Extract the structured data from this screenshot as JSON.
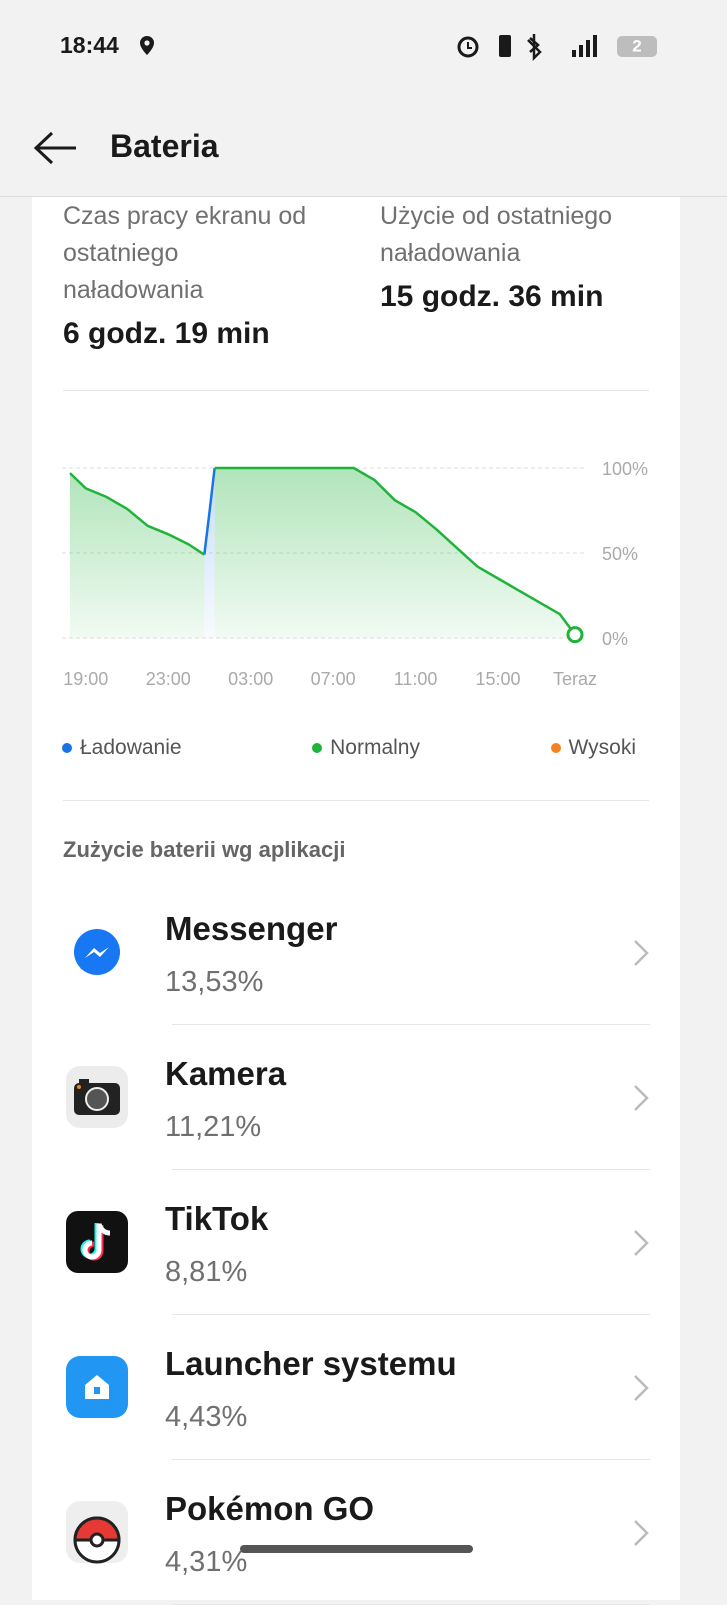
{
  "status_bar": {
    "time": "18:44",
    "battery_level": "2"
  },
  "header": {
    "title": "Bateria"
  },
  "summary": [
    {
      "label": "Czas pracy ekranu od ostatniego naładowania",
      "value": "6 godz. 19 min"
    },
    {
      "label": "Użycie od ostatniego naładowania",
      "value": "15 godz. 36 min"
    }
  ],
  "chart_data": {
    "type": "line",
    "x": [
      "18:14",
      "19:00",
      "20:00",
      "21:00",
      "22:00",
      "23:00",
      "00:00",
      "00:45",
      "01:00",
      "01:15",
      "03:00",
      "07:00",
      "08:00",
      "09:00",
      "10:00",
      "11:00",
      "12:00",
      "13:00",
      "14:00",
      "15:00",
      "16:00",
      "17:00",
      "18:00",
      "18:44"
    ],
    "series": [
      {
        "name": "Ładowanie",
        "color": "#1a73e8",
        "values": [
          null,
          null,
          null,
          null,
          null,
          null,
          null,
          49,
          74,
          100,
          null,
          null,
          null,
          null,
          null,
          null,
          null,
          null,
          null,
          null,
          null,
          null,
          null,
          null
        ]
      },
      {
        "name": "Normalny",
        "color": "#1fb33a",
        "values": [
          97,
          88,
          83,
          76,
          66,
          61,
          55,
          49,
          null,
          100,
          100,
          100,
          100,
          93,
          81,
          74,
          64,
          53,
          42,
          35,
          28,
          21,
          14,
          2
        ]
      },
      {
        "name": "Wysoki",
        "color": "#f5821f",
        "values": [
          null,
          null,
          null,
          null,
          null,
          null,
          null,
          null,
          null,
          null,
          null,
          null,
          null,
          null,
          null,
          null,
          null,
          null,
          null,
          null,
          null,
          null,
          null,
          null
        ]
      }
    ],
    "xlim": [
      "18:14",
      "18:44"
    ],
    "xticks": [
      "19:00",
      "23:00",
      "03:00",
      "07:00",
      "11:00",
      "15:00",
      {
        "value": "18:44",
        "label": "Teraz"
      }
    ],
    "ylim": [
      0,
      100
    ],
    "yticks": [
      {
        "value": 100,
        "label": "100%"
      },
      {
        "value": 50,
        "label": "50%"
      },
      {
        "value": 0,
        "label": "0%"
      }
    ],
    "grid": true
  },
  "app_usage": {
    "title": "Zużycie baterii wg aplikacji",
    "apps": [
      {
        "name": "Messenger",
        "usage": "13,53%"
      },
      {
        "name": "Kamera",
        "usage": "11,21%"
      },
      {
        "name": "TikTok",
        "usage": "8,81%"
      },
      {
        "name": "Launcher systemu",
        "usage": "4,43%"
      },
      {
        "name": "Pokémon GO",
        "usage": "4,31%"
      }
    ]
  }
}
